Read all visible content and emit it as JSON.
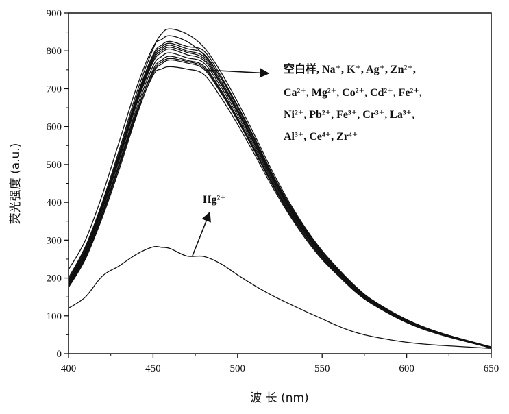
{
  "chart_data": {
    "type": "line",
    "title": "",
    "xlabel": "波 长 (nm)",
    "ylabel": "荧光强度 (a.u.)",
    "xlim": [
      400,
      650
    ],
    "ylim": [
      0,
      900
    ],
    "xticks": [
      "400",
      "450",
      "500",
      "550",
      "600",
      "650"
    ],
    "yticks": [
      "0",
      "100",
      "200",
      "300",
      "400",
      "500",
      "600",
      "700",
      "800",
      "900"
    ],
    "grid": false,
    "line_color": "#111111",
    "annotations": [
      {
        "id": "blank-and-ions",
        "lines": [
          "空白样, Na⁺, K⁺, Ag⁺, Zn²⁺,",
          "Ca²⁺, Mg²⁺, Co²⁺, Cd²⁺, Fe²⁺,",
          "Ni²⁺, Pb²⁺, Fe³⁺, Cr³⁺, La³⁺,",
          "Al³⁺, Ce⁴⁺, Zr⁴⁺"
        ]
      },
      {
        "id": "hg",
        "lines": [
          "Hg²⁺"
        ]
      }
    ],
    "series": [
      {
        "x": [
          400,
          410,
          420,
          430,
          440,
          450,
          455,
          460,
          470,
          480,
          490,
          500,
          510,
          520,
          530,
          540,
          550,
          560,
          570,
          580,
          600,
          620,
          650
        ],
        "values": [
          222,
          300,
          420,
          560,
          700,
          810,
          830,
          840,
          825,
          790,
          730,
          655,
          570,
          480,
          400,
          330,
          270,
          220,
          175,
          140,
          90,
          55,
          18
        ]
      },
      {
        "x": [
          400,
          410,
          420,
          430,
          440,
          450,
          455,
          460,
          470,
          480,
          490,
          500,
          510,
          520,
          530,
          540,
          550,
          560,
          570,
          580,
          600,
          620,
          650
        ],
        "values": [
          200,
          283,
          400,
          538,
          685,
          805,
          845,
          858,
          845,
          810,
          745,
          665,
          578,
          487,
          405,
          333,
          272,
          222,
          177,
          141,
          90,
          55,
          17
        ]
      },
      {
        "x": [
          400,
          410,
          420,
          430,
          440,
          450,
          455,
          460,
          470,
          480,
          490,
          500,
          510,
          520,
          530,
          540,
          550,
          560,
          570,
          580,
          600,
          620,
          650
        ],
        "values": [
          195,
          280,
          395,
          530,
          675,
          790,
          815,
          825,
          812,
          800,
          735,
          655,
          568,
          478,
          398,
          327,
          267,
          218,
          174,
          139,
          88,
          54,
          17
        ]
      },
      {
        "x": [
          400,
          410,
          420,
          430,
          440,
          450,
          455,
          460,
          470,
          480,
          490,
          500,
          510,
          520,
          530,
          540,
          550,
          560,
          570,
          580,
          600,
          620,
          650
        ],
        "values": [
          190,
          272,
          388,
          522,
          665,
          780,
          805,
          815,
          800,
          785,
          722,
          645,
          560,
          472,
          393,
          323,
          264,
          215,
          172,
          137,
          87,
          53,
          16
        ]
      },
      {
        "x": [
          400,
          410,
          420,
          430,
          440,
          450,
          455,
          460,
          470,
          480,
          490,
          500,
          510,
          520,
          530,
          540,
          550,
          560,
          570,
          580,
          600,
          620,
          650
        ],
        "values": [
          186,
          266,
          380,
          512,
          655,
          770,
          795,
          805,
          790,
          775,
          713,
          637,
          553,
          466,
          388,
          319,
          261,
          213,
          170,
          136,
          86,
          52,
          16
        ]
      },
      {
        "x": [
          400,
          410,
          420,
          430,
          440,
          450,
          455,
          460,
          470,
          480,
          490,
          500,
          510,
          520,
          530,
          540,
          550,
          560,
          570,
          580,
          600,
          620,
          650
        ],
        "values": [
          182,
          260,
          373,
          503,
          645,
          760,
          785,
          795,
          782,
          768,
          706,
          630,
          547,
          461,
          384,
          316,
          258,
          211,
          168,
          134,
          85,
          52,
          16
        ]
      },
      {
        "x": [
          400,
          410,
          420,
          430,
          440,
          450,
          455,
          460,
          470,
          480,
          490,
          500,
          510,
          520,
          530,
          540,
          550,
          560,
          570,
          580,
          600,
          620,
          650
        ],
        "values": [
          178,
          254,
          366,
          495,
          635,
          750,
          775,
          786,
          775,
          760,
          698,
          623,
          541,
          456,
          380,
          312,
          255,
          208,
          166,
          133,
          84,
          51,
          16
        ]
      },
      {
        "x": [
          400,
          410,
          420,
          430,
          440,
          450,
          455,
          460,
          470,
          480,
          490,
          500,
          510,
          520,
          530,
          540,
          550,
          560,
          570,
          580,
          600,
          620,
          650
        ],
        "values": [
          175,
          250,
          360,
          487,
          625,
          740,
          765,
          776,
          768,
          752,
          690,
          616,
          535,
          451,
          375,
          309,
          252,
          206,
          164,
          131,
          83,
          51,
          15
        ]
      },
      {
        "x": [
          400,
          410,
          420,
          430,
          440,
          450,
          455,
          460,
          470,
          480,
          490,
          500,
          510,
          520,
          530,
          540,
          550,
          560,
          570,
          580,
          600,
          620,
          650
        ],
        "values": [
          180,
          257,
          368,
          495,
          630,
          735,
          752,
          758,
          752,
          738,
          678,
          606,
          527,
          445,
          371,
          305,
          249,
          204,
          162,
          130,
          82,
          50,
          15
        ]
      },
      {
        "x": [
          400,
          410,
          420,
          430,
          440,
          450,
          455,
          460,
          470,
          480,
          490,
          500,
          510,
          520,
          530,
          540,
          550,
          560,
          570,
          580,
          600,
          620,
          650
        ],
        "values": [
          184,
          262,
          372,
          500,
          637,
          745,
          770,
          780,
          772,
          756,
          694,
          620,
          538,
          453,
          377,
          310,
          253,
          207,
          165,
          132,
          84,
          51,
          16
        ]
      },
      {
        "x": [
          400,
          410,
          420,
          430,
          440,
          450,
          455,
          460,
          470,
          480,
          490,
          500,
          510,
          520,
          530,
          540,
          550,
          560,
          570,
          580,
          600,
          620,
          650
        ],
        "values": [
          188,
          268,
          383,
          516,
          660,
          775,
          800,
          810,
          796,
          780,
          717,
          641,
          556,
          469,
          390,
          321,
          262,
          214,
          171,
          136,
          86,
          52,
          16
        ]
      },
      {
        "x": [
          400,
          410,
          420,
          430,
          440,
          450,
          455,
          460,
          470,
          480,
          490,
          500,
          510,
          520,
          530,
          540,
          550,
          560,
          570,
          580,
          600,
          620,
          650
        ],
        "values": [
          192,
          275,
          391,
          526,
          670,
          785,
          810,
          820,
          806,
          792,
          729,
          651,
          565,
          476,
          396,
          326,
          266,
          217,
          173,
          138,
          87,
          53,
          16
        ]
      },
      {
        "x": [
          400,
          410,
          420,
          430,
          440,
          450,
          455,
          460,
          470,
          480,
          490,
          500,
          510,
          520,
          530,
          540,
          550,
          560,
          570,
          580,
          600,
          620,
          650
        ],
        "values": [
          120,
          150,
          205,
          232,
          262,
          282,
          281,
          278,
          258,
          257,
          238,
          208,
          180,
          155,
          133,
          112,
          92,
          72,
          56,
          45,
          30,
          22,
          14
        ]
      }
    ]
  }
}
